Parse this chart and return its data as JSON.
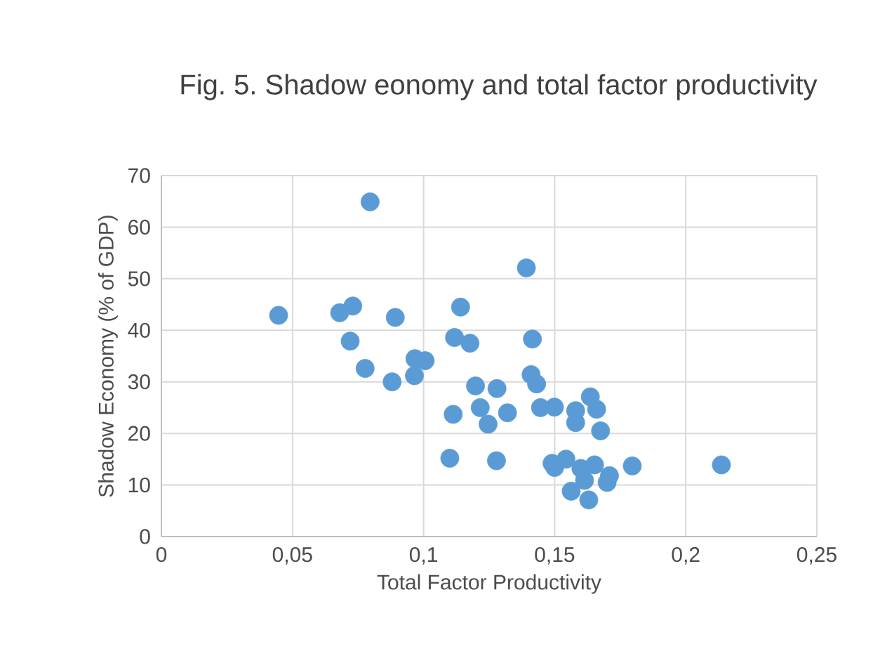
{
  "chart_data": {
    "type": "scatter",
    "title": "Fig. 5. Shadow eonomy and total factor productivity",
    "xlabel": "Total Factor Productivity",
    "ylabel": "Shadow Economy (% of GDP)",
    "x": [
      0.0447,
      0.0796,
      0.068,
      0.073,
      0.072,
      0.0777,
      0.0892,
      0.088,
      0.0967,
      0.1006,
      0.0965,
      0.1141,
      0.1118,
      0.1177,
      0.1198,
      0.1113,
      0.11,
      0.1216,
      0.128,
      0.1246,
      0.132,
      0.1278,
      0.1392,
      0.1415,
      0.141,
      0.1431,
      0.1446,
      0.1499,
      0.158,
      0.158,
      0.1636,
      0.166,
      0.1675,
      0.149,
      0.15,
      0.1543,
      0.16,
      0.1652,
      0.1614,
      0.1709,
      0.17,
      0.1563,
      0.163,
      0.1796,
      0.2136
    ],
    "series": [
      {
        "color": "#5b9bd5",
        "values": [
          42.9,
          64.9,
          43.4,
          44.7,
          37.9,
          32.6,
          42.5,
          30.0,
          34.5,
          34.1,
          31.2,
          44.5,
          38.6,
          37.5,
          29.2,
          23.7,
          15.2,
          25.0,
          28.7,
          21.8,
          24.0,
          14.7,
          52.1,
          38.3,
          31.4,
          29.6,
          25.0,
          25.1,
          24.4,
          22.1,
          27.1,
          24.7,
          20.5,
          14.2,
          13.4,
          15.0,
          13.2,
          13.9,
          10.9,
          11.8,
          10.5,
          8.8,
          7.1,
          13.7,
          13.9
        ]
      }
    ],
    "marker": "circle",
    "grid": true,
    "xlim": [
      0,
      0.25
    ],
    "xticks": [
      0,
      {
        "value": 0.05,
        "label": "0,05"
      },
      {
        "value": 0.1,
        "label": "0,1"
      },
      {
        "value": 0.15,
        "label": "0,15"
      },
      {
        "value": 0.2,
        "label": "0,2"
      },
      {
        "value": 0.25,
        "label": "0,25"
      }
    ],
    "ylim": [
      0,
      70
    ],
    "yticks": [
      0,
      10,
      20,
      30,
      40,
      50,
      60,
      70
    ]
  }
}
